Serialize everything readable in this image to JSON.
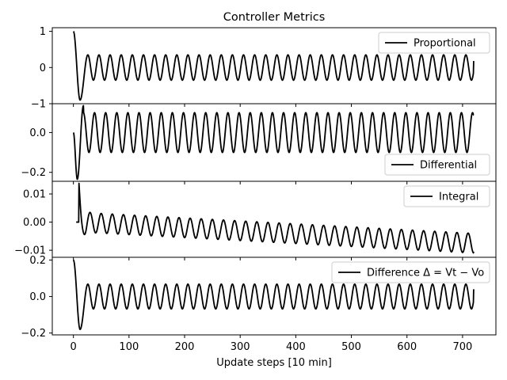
{
  "chart_data": {
    "type": "line",
    "title": "Controller Metrics",
    "xlabel": "Update steps [10 min]",
    "xlim": [
      -38,
      760
    ],
    "xticks": [
      0,
      100,
      200,
      300,
      400,
      500,
      600,
      700
    ],
    "xtick_labels": [
      "0",
      "100",
      "200",
      "300",
      "400",
      "500",
      "600",
      "700"
    ],
    "line_color": "#000000",
    "panels": [
      {
        "name": "Proportional",
        "legend_label": " Proportional",
        "legend_position": "upper-right",
        "ylim": [
          -1.0,
          1.1
        ],
        "yticks": [
          -1,
          0,
          1
        ],
        "ytick_labels": [
          "−1",
          "0",
          "1"
        ],
        "series": {
          "x_start": 0,
          "x_end": 720,
          "period": 20,
          "start_value": 1.0,
          "first_trough_x": 12,
          "first_trough_value": -0.9,
          "first_peak_x": 26,
          "first_peak_value": 0.35,
          "steady_amplitude": 0.35,
          "steady_offset": 0.0,
          "end_value": 0.18
        }
      },
      {
        "name": "Differential",
        "legend_label": " Differential",
        "legend_position": "lower-right",
        "ylim": [
          -0.245,
          0.145
        ],
        "yticks": [
          -0.2,
          0.0
        ],
        "ytick_labels": [
          "−0.2",
          "0.0"
        ],
        "series": {
          "x_start": 0,
          "x_end": 720,
          "period": 20,
          "start_value": 0.0,
          "first_trough_x": 7,
          "first_trough_value": -0.235,
          "first_peak_x": 18,
          "first_peak_value": 0.135,
          "steady_amplitude": 0.1,
          "steady_offset": 0.0,
          "end_value": 0.09
        }
      },
      {
        "name": "Integral",
        "legend_label": " Integral",
        "legend_position": "upper-right",
        "ylim": [
          -0.0125,
          0.0145
        ],
        "yticks": [
          -0.01,
          0.0,
          0.01
        ],
        "ytick_labels": [
          "−0.01",
          "0.00",
          "0.01"
        ],
        "series": {
          "x_start": 5,
          "x_end": 720,
          "period": 20,
          "start_value": 0.0,
          "jump_x": 10,
          "jump_value": 0.0138,
          "first_trough_x": 20,
          "first_trough_value": -0.0035,
          "first_peak_x": 30,
          "first_peak_value": 0.0022,
          "steady_amplitude": 0.0035,
          "drift_start": 0.0,
          "drift_end": -0.0075,
          "end_value": -0.0105
        }
      },
      {
        "name": "Difference",
        "legend_label": "Difference Δ = Vt − Vo",
        "legend_position": "upper-right",
        "ylim": [
          -0.21,
          0.215
        ],
        "yticks": [
          -0.2,
          0.0,
          0.2
        ],
        "ytick_labels": [
          "−0.2",
          "0.0",
          "0.2"
        ],
        "series": {
          "x_start": 0,
          "x_end": 720,
          "period": 20,
          "start_value": 0.2,
          "first_trough_x": 12,
          "first_trough_value": -0.18,
          "first_peak_x": 26,
          "first_peak_value": 0.068,
          "steady_amplitude": 0.068,
          "steady_offset": 0.0,
          "end_value": 0.04
        }
      }
    ]
  }
}
